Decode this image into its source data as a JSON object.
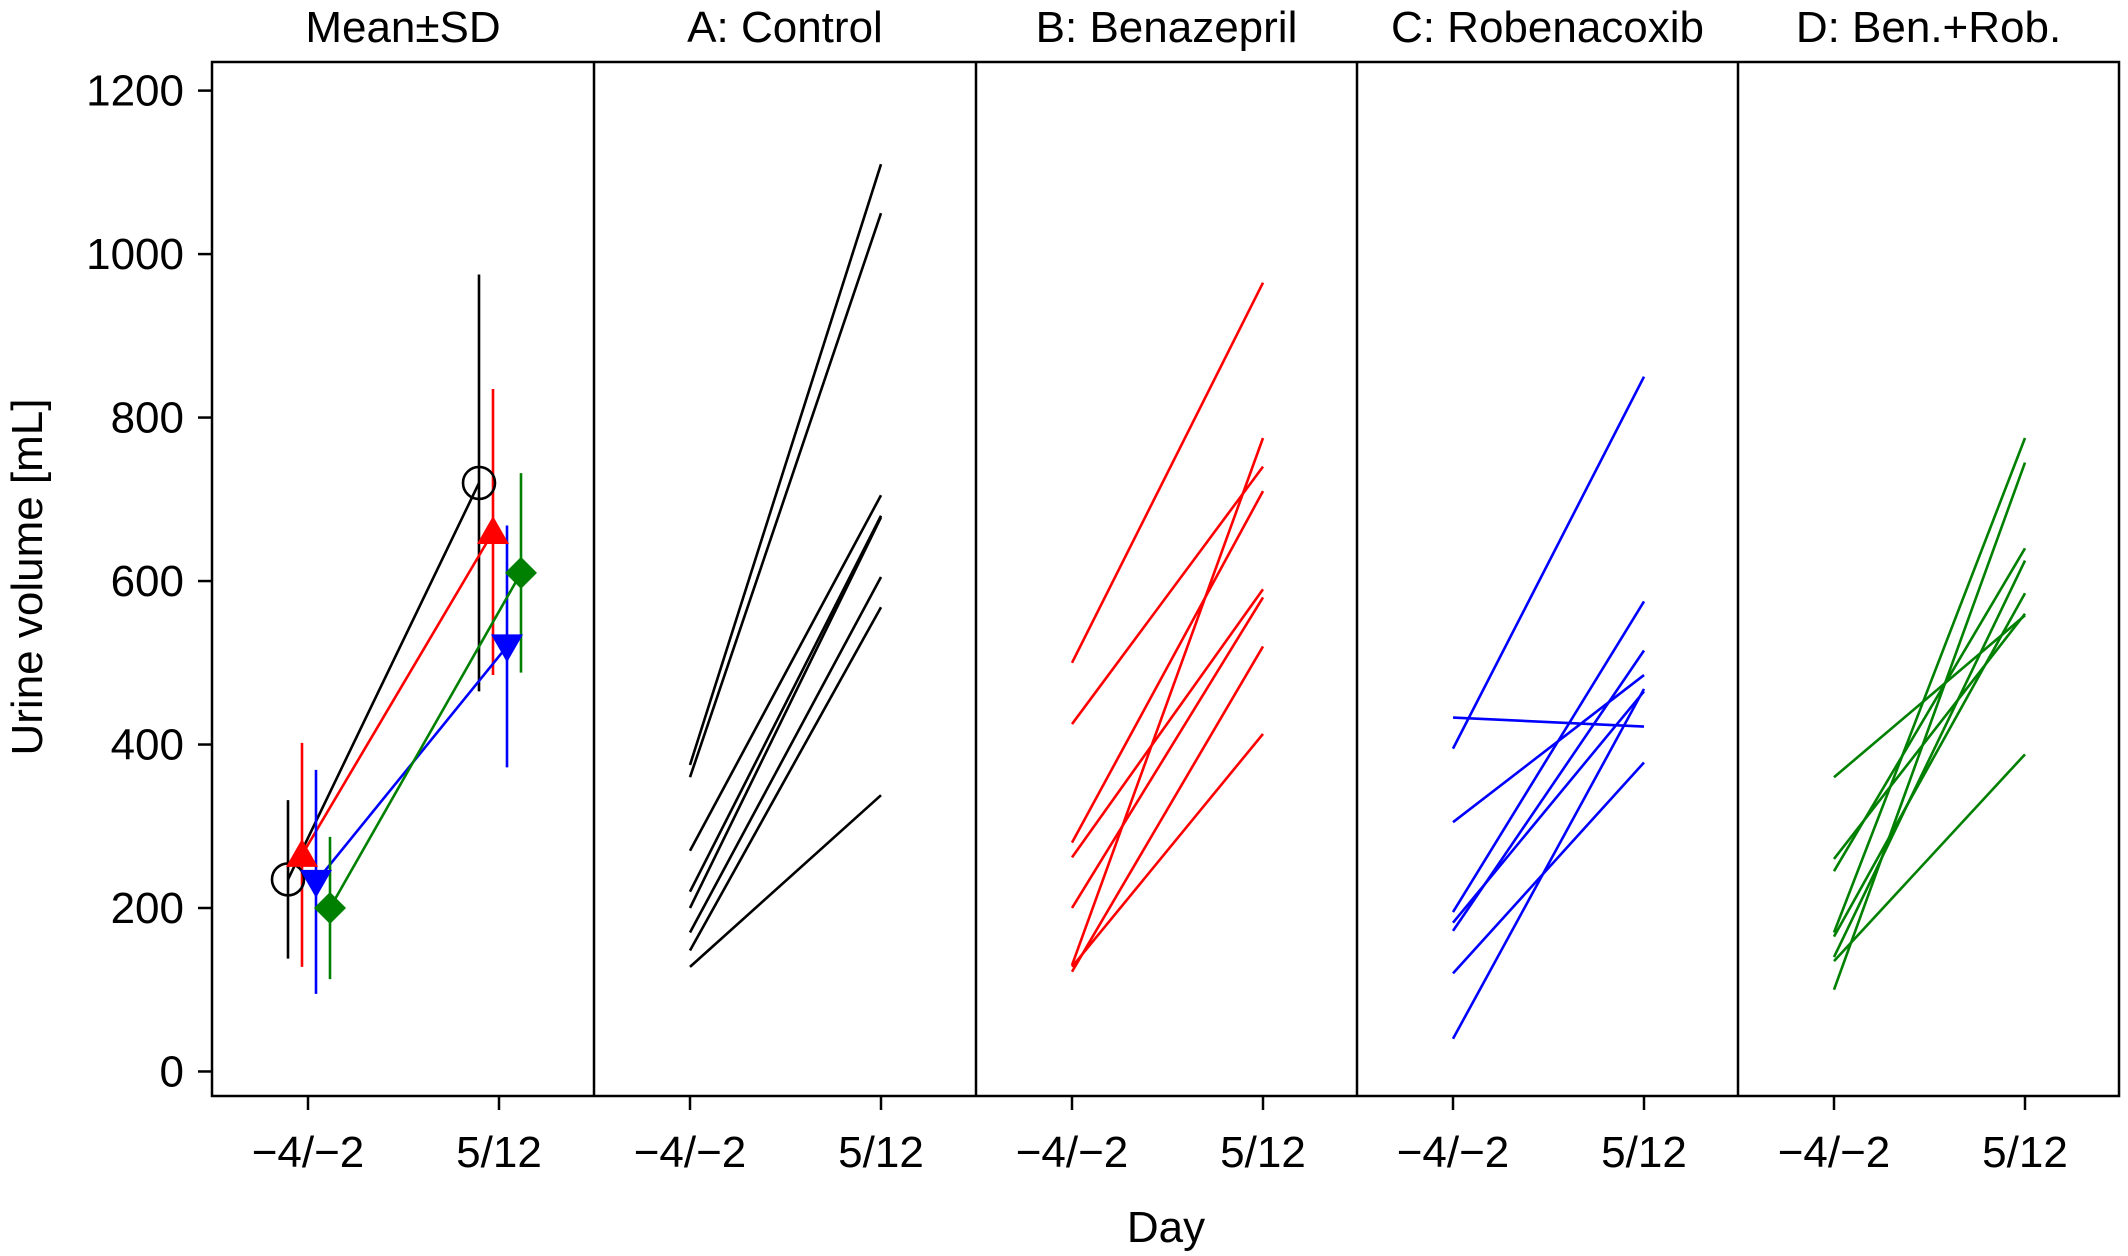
{
  "chart_data": {
    "type": "line",
    "ylabel": "Urine volume [mL]",
    "xlabel": "Day",
    "ylim": [
      -30,
      1235
    ],
    "yticks": [
      0,
      200,
      400,
      600,
      800,
      1000,
      1200
    ],
    "categories": [
      "−4/−2",
      "5/12"
    ],
    "colors": {
      "control": "#000000",
      "benazepril": "#ff0000",
      "robenacoxib": "#0000ff",
      "combination": "#008000"
    },
    "panels": [
      {
        "title": "Mean±SD",
        "type": "errorbar",
        "groups": [
          {
            "color_key": "control",
            "marker": "open-circle",
            "means": [
              235,
              720
            ],
            "sd": [
              97,
              255
            ]
          },
          {
            "color_key": "benazepril",
            "marker": "triangle-up",
            "means": [
              265,
              660
            ],
            "sd": [
              137,
              175
            ]
          },
          {
            "color_key": "robenacoxib",
            "marker": "triangle-down",
            "means": [
              232,
              520
            ],
            "sd": [
              137,
              148
            ]
          },
          {
            "color_key": "combination",
            "marker": "diamond",
            "means": [
              200,
              610
            ],
            "sd": [
              87,
              122
            ]
          }
        ]
      },
      {
        "title": "A: Control",
        "color_key": "control",
        "lines": [
          [
            375,
            1110
          ],
          [
            360,
            1050
          ],
          [
            270,
            705
          ],
          [
            220,
            680
          ],
          [
            200,
            678
          ],
          [
            170,
            605
          ],
          [
            148,
            568
          ],
          [
            128,
            338
          ]
        ]
      },
      {
        "title": "B: Benazepril",
        "color_key": "benazepril",
        "lines": [
          [
            500,
            965
          ],
          [
            425,
            740
          ],
          [
            280,
            710
          ],
          [
            262,
            590
          ],
          [
            200,
            580
          ],
          [
            130,
            775
          ],
          [
            122,
            520
          ],
          [
            128,
            413
          ]
        ]
      },
      {
        "title": "C: Robenacoxib",
        "color_key": "robenacoxib",
        "lines": [
          [
            395,
            850
          ],
          [
            433,
            422
          ],
          [
            305,
            485
          ],
          [
            195,
            575
          ],
          [
            182,
            465
          ],
          [
            172,
            515
          ],
          [
            120,
            378
          ],
          [
            40,
            468
          ]
        ]
      },
      {
        "title": "D: Ben.+Rob.",
        "color_key": "combination",
        "lines": [
          [
            360,
            558
          ],
          [
            260,
            560
          ],
          [
            245,
            640
          ],
          [
            170,
            775
          ],
          [
            165,
            585
          ],
          [
            140,
            625
          ],
          [
            135,
            388
          ],
          [
            100,
            745
          ]
        ]
      }
    ]
  }
}
